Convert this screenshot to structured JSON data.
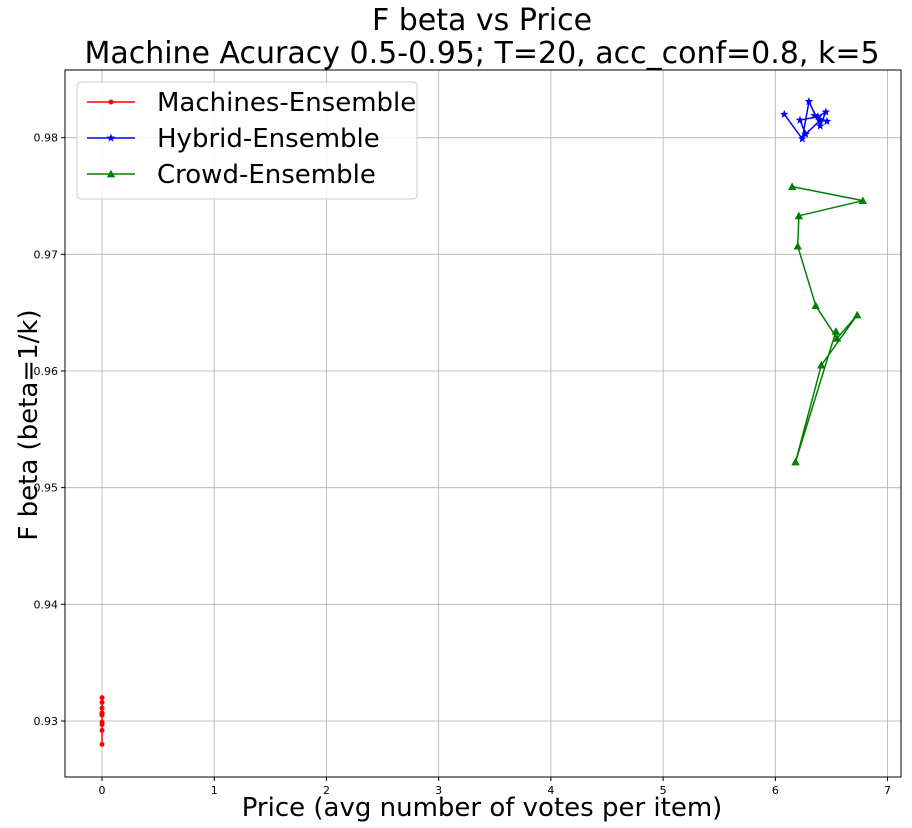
{
  "chart_data": {
    "type": "line",
    "title": "F beta vs Price",
    "subtitle": "Machine Acuracy 0.5-0.95; T=20, acc_conf=0.8, k=5",
    "xlabel": "Price (avg number of votes per item)",
    "ylabel": "F beta (beta=1/k)",
    "xlim": [
      -0.33,
      7.12
    ],
    "ylim": [
      0.9252,
      0.9858
    ],
    "xticks": [
      "0",
      "1",
      "2",
      "3",
      "4",
      "5",
      "6",
      "7"
    ],
    "yticks": [
      "0.93",
      "0.94",
      "0.95",
      "0.96",
      "0.97",
      "0.98"
    ],
    "grid": true,
    "legend_position": "top-left",
    "series": [
      {
        "name": "Machines-Ensemble",
        "color": "#ff0000",
        "marker": "dot",
        "x": [
          0,
          0,
          0,
          0,
          0,
          0,
          0,
          0,
          0,
          0
        ],
        "y": [
          0.932,
          0.928,
          0.9306,
          0.9297,
          0.9316,
          0.9292,
          0.9305,
          0.9311,
          0.9299,
          0.9307
        ]
      },
      {
        "name": "Hybrid-Ensemble",
        "color": "#0000ff",
        "marker": "star",
        "x": [
          6.08,
          6.24,
          6.3,
          6.4,
          6.45,
          6.38,
          6.22,
          6.27,
          6.4,
          6.46,
          6.35
        ],
        "y": [
          0.982,
          0.9799,
          0.9831,
          0.981,
          0.9822,
          0.9818,
          0.9815,
          0.9803,
          0.9815,
          0.9814,
          0.9819
        ]
      },
      {
        "name": "Crowd-Ensemble",
        "color": "#008000",
        "marker": "triangle",
        "x": [
          6.15,
          6.78,
          6.21,
          6.2,
          6.36,
          6.55,
          6.73,
          6.41,
          6.18,
          6.54
        ],
        "y": [
          0.9758,
          0.9746,
          0.9733,
          0.9707,
          0.9656,
          0.9628,
          0.9648,
          0.9605,
          0.9522,
          0.9634
        ]
      }
    ]
  }
}
